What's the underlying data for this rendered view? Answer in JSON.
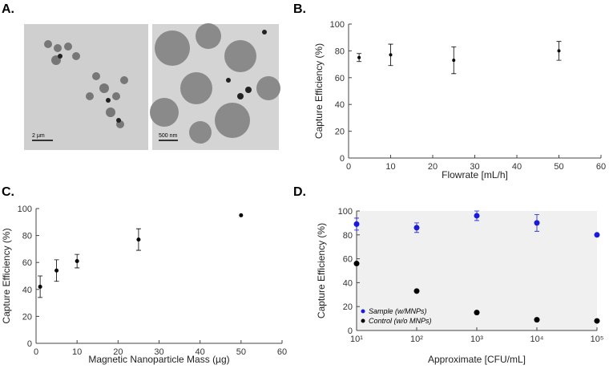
{
  "panel_labels": [
    "A.",
    "B.",
    "C.",
    "D."
  ],
  "micrographs": [
    {
      "scale_label": "2 µm"
    },
    {
      "scale_label": "500 nm"
    }
  ],
  "chart_data": [
    {
      "type": "errorbar",
      "x": [
        2.5,
        10,
        25,
        50
      ],
      "series": [
        {
          "color": "#000000",
          "values": [
            75,
            77,
            73,
            80
          ],
          "errors": [
            3,
            8,
            10,
            7
          ]
        }
      ],
      "xlabel": "Flowrate [mL/h]",
      "ylabel": "Capture Efficiency (%)",
      "xlim": [
        0,
        60
      ],
      "xticks": [
        0,
        10,
        20,
        30,
        40,
        50,
        60
      ],
      "ylim": [
        0,
        100
      ],
      "yticks": [
        0,
        20,
        40,
        60,
        80,
        100
      ]
    },
    {
      "type": "errorbar",
      "x": [
        1,
        5,
        10,
        25,
        50
      ],
      "series": [
        {
          "color": "#000000",
          "values": [
            42,
            54,
            61,
            77,
            95
          ],
          "errors": [
            8,
            8,
            5,
            8,
            null
          ]
        }
      ],
      "xlabel": "Magnetic Nanoparticle Mass (µg)",
      "ylabel": "Capture Efficiency (%)",
      "xlim": [
        0,
        60
      ],
      "xticks": [
        0,
        10,
        20,
        30,
        40,
        50,
        60
      ],
      "ylim": [
        0,
        100
      ],
      "yticks": [
        0,
        20,
        40,
        60,
        80,
        100
      ]
    },
    {
      "type": "errorbar",
      "x": [
        10,
        100,
        1000,
        10000,
        100000
      ],
      "xscale": "log",
      "series": [
        {
          "name": "Sample (w/MNPs)",
          "color": "#1a1adb",
          "values": [
            89,
            86,
            96,
            90,
            80
          ],
          "errors": [
            5,
            4,
            4,
            7,
            null
          ]
        },
        {
          "name": "Control (w/o MNPs)",
          "color": "#000000",
          "values": [
            56,
            33,
            15,
            9,
            8
          ],
          "errors": [
            null,
            null,
            null,
            null,
            null
          ]
        }
      ],
      "legend": "lower left",
      "plot_background": "#f0f0f0",
      "xlabel": "Approximate [CFU/mL]",
      "ylabel": "Capture Efficiency (%)",
      "xlim": [
        10,
        100000
      ],
      "xticks": [
        {
          "value": 10,
          "label": "10¹"
        },
        {
          "value": 100,
          "label": "10²"
        },
        {
          "value": 1000,
          "label": "10³"
        },
        {
          "value": 10000,
          "label": "10⁴"
        },
        {
          "value": 100000,
          "label": "10⁵"
        }
      ],
      "ylim": [
        0,
        100
      ],
      "yticks": [
        0,
        20,
        40,
        60,
        80,
        100
      ]
    }
  ]
}
